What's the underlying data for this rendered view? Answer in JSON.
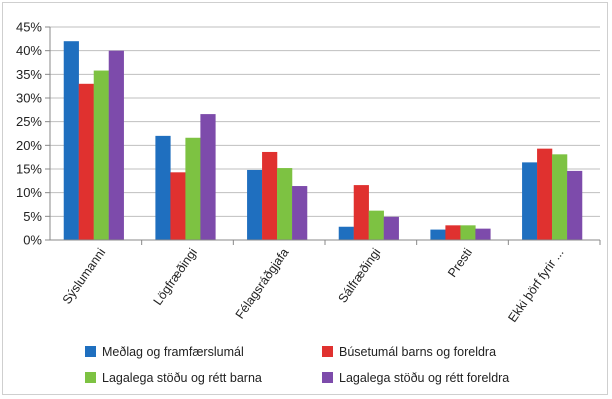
{
  "chart_data": {
    "type": "bar",
    "categories": [
      "Sýslumanni",
      "Lögfræðingi",
      "Félagsráðgjafa",
      "Sálfræðingi",
      "Presti",
      "Ekki þörf fyrir ..."
    ],
    "series": [
      {
        "name": "Meðlag og framfærslumál",
        "color": "#1f6fbf",
        "values": [
          42,
          22,
          14.8,
          2.8,
          2.2,
          16.4
        ]
      },
      {
        "name": "Búsetumál barns og foreldra",
        "color": "#e0312f",
        "values": [
          33,
          14.3,
          18.6,
          11.6,
          3.1,
          19.3
        ]
      },
      {
        "name": "Lagalega stöðu og rétt barna",
        "color": "#7dc242",
        "values": [
          35.8,
          21.6,
          15.2,
          6.2,
          3.1,
          18.1
        ]
      },
      {
        "name": "Lagalega stöðu og rétt foreldra",
        "color": "#7d4bab",
        "values": [
          40,
          26.6,
          11.4,
          4.9,
          2.4,
          14.6
        ]
      }
    ],
    "ylim": [
      0,
      45
    ],
    "yticks": [
      "0%",
      "5%",
      "10%",
      "15%",
      "20%",
      "25%",
      "30%",
      "35%",
      "40%",
      "45%"
    ],
    "grid": true,
    "legend_position": "bottom"
  }
}
